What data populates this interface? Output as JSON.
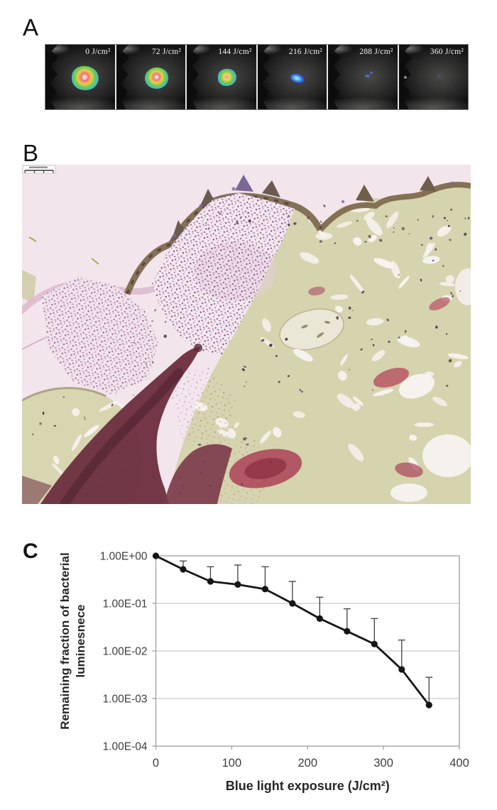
{
  "figure": {
    "panel_a": {
      "label": "A",
      "description": "bioluminescence image strip of infected wound over increasing blue light dose",
      "frames": [
        {
          "label": "0 J/cm²",
          "dose_j_cm2": 0,
          "spot": "large multicolor focus"
        },
        {
          "label": "72 J/cm²",
          "dose_j_cm2": 72,
          "spot": "large multicolor focus"
        },
        {
          "label": "144 J/cm²",
          "dose_j_cm2": 144,
          "spot": "medium green-blue focus"
        },
        {
          "label": "216 J/cm²",
          "dose_j_cm2": 216,
          "spot": "small blue focus"
        },
        {
          "label": "288 J/cm²",
          "dose_j_cm2": 288,
          "spot": "faint blue dots"
        },
        {
          "label": "360 J/cm²",
          "dose_j_cm2": 360,
          "spot": "nearly no signal"
        }
      ]
    },
    "panel_b": {
      "label": "B",
      "description": "histology micrograph with bacterial clusters and stained tissue",
      "has_scale_bar": true
    },
    "panel_c": {
      "label": "C"
    }
  },
  "chart_data": {
    "type": "line",
    "title": "",
    "xlabel": "Blue light exposure (J/cm²)",
    "ylabel_line1": "Remaining fraction of bacterial",
    "ylabel_line2": "luminesnece",
    "x": [
      0,
      36,
      72,
      108,
      144,
      180,
      216,
      252,
      288,
      324,
      360
    ],
    "values": [
      1.0,
      0.52,
      0.29,
      0.25,
      0.2,
      0.1,
      0.048,
      0.026,
      0.014,
      0.0041,
      0.00073
    ],
    "error_upper": [
      1.0,
      0.78,
      0.59,
      0.64,
      0.59,
      0.29,
      0.135,
      0.077,
      0.048,
      0.017,
      0.0028
    ],
    "x_ticks": [
      0,
      100,
      200,
      300,
      400
    ],
    "y_tick_labels": [
      "1.00E+00",
      "1.00E-01",
      "1.00E-02",
      "1.00E-03",
      "1.00E-04"
    ],
    "y_scale": "log",
    "xlim": [
      0,
      400
    ],
    "ylim": [
      0.0001,
      1
    ],
    "grid": "horizontal",
    "legend": "none",
    "marker": "circle",
    "line_color": "#151515",
    "error_bar_color": "#3f3f3f",
    "grid_color": "#c9c9c9",
    "axis_color": "#a6a6a6"
  }
}
